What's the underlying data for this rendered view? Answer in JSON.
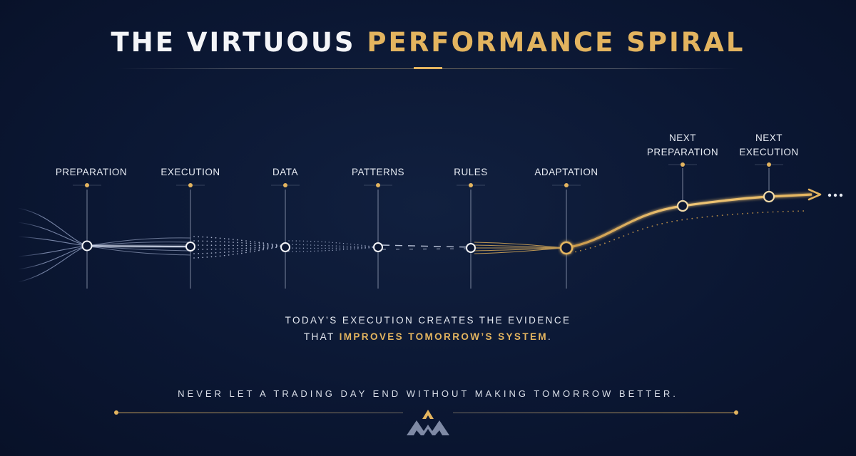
{
  "header": {
    "title_prefix": "THE VIRTUOUS",
    "title_accent": "PERFORMANCE SPIRAL"
  },
  "stages": [
    {
      "label": "PREPARATION"
    },
    {
      "label": "EXECUTION"
    },
    {
      "label": "DATA"
    },
    {
      "label": "PATTERNS"
    },
    {
      "label": "RULES"
    },
    {
      "label": "ADAPTATION"
    },
    {
      "label_line1": "NEXT",
      "label_line2": "PREPARATION"
    },
    {
      "label_line1": "NEXT",
      "label_line2": "EXECUTION"
    }
  ],
  "caption": {
    "line1": "TODAY’S EXECUTION CREATES THE EVIDENCE",
    "line2_prefix": "THAT",
    "line2_accent": "IMPROVES TOMORROW’S SYSTEM",
    "line2_suffix": "."
  },
  "footer": {
    "motto": "NEVER LET A TRADING DAY END WITHOUT MAKING TOMORROW BETTER."
  },
  "colors": {
    "background": "#0b1733",
    "gold": "#e3b45f",
    "white": "#f4f5f8",
    "logo_slate": "#7f8aa5"
  },
  "icons": {
    "continuation": "ellipsis-dots",
    "brand": "mountain-logo"
  }
}
